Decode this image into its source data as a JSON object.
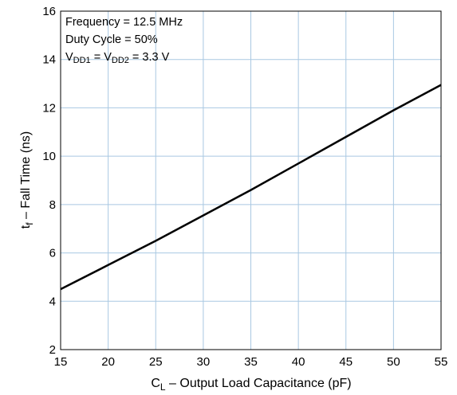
{
  "chart_data": {
    "type": "line",
    "x": [
      15,
      20,
      25,
      30,
      35,
      40,
      45,
      50,
      55
    ],
    "series": [
      {
        "values": [
          4.5,
          5.5,
          6.5,
          7.55,
          8.6,
          9.7,
          10.8,
          11.9,
          12.95
        ]
      }
    ],
    "xlim": [
      15,
      55
    ],
    "ylim": [
      2,
      16
    ],
    "xticks": [
      "15",
      "20",
      "25",
      "30",
      "35",
      "40",
      "45",
      "50",
      "55"
    ],
    "yticks": [
      "2",
      "4",
      "6",
      "8",
      "10",
      "12",
      "14",
      "16"
    ],
    "xlabel": {
      "main": "C",
      "sub": "L",
      "rest": " – Output Load Capacitance (pF)"
    },
    "ylabel": {
      "main": "t",
      "sub": "f",
      "rest": " – Fall Time (ns)"
    },
    "grid": true,
    "annotations": {
      "frequency": "Frequency = 12.5 MHz",
      "duty_cycle": "Duty Cycle = 50%",
      "vdd": {
        "v1": "V",
        "s1": "DD1",
        "eq": " = ",
        "v2": "V",
        "s2": "DD2",
        "val": " = 3.3 V"
      }
    },
    "colors": {
      "grid": "#a9c8e2",
      "line": "#000000",
      "frame": "#000000"
    }
  }
}
